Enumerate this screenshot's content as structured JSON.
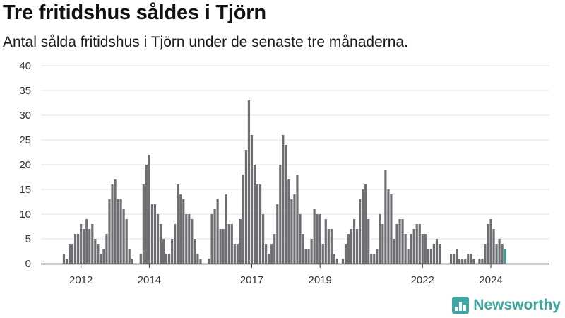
{
  "header": {
    "title": "Tre fritidshus såldes i Tjörn",
    "subtitle": "Antal sålda fritidshus i Tjörn under de senaste tre månaderna."
  },
  "brand": {
    "name": "Newsworthy",
    "icon": "newsworthy-logo-icon",
    "color": "#3ea6a0"
  },
  "chart_data": {
    "type": "bar",
    "x_ticks": [
      {
        "label": "2012",
        "index": 6
      },
      {
        "label": "2014",
        "index": 30
      },
      {
        "label": "2017",
        "index": 66
      },
      {
        "label": "2019",
        "index": 90
      },
      {
        "label": "2022",
        "index": 126
      },
      {
        "label": "2024",
        "index": 150
      }
    ],
    "y_ticks": [
      0,
      5,
      10,
      15,
      20,
      25,
      30,
      35,
      40
    ],
    "ylim": [
      0,
      40
    ],
    "grid": true,
    "colors": {
      "bar": "#6f6e73",
      "highlight": "#3a9e9a",
      "grid": "#e3e3e3",
      "axis": "#333333"
    },
    "annotation": {
      "label": "3",
      "index": 163
    },
    "values": [
      2,
      1,
      4,
      4,
      6,
      6,
      8,
      7,
      9,
      7,
      8,
      5,
      4,
      2,
      3,
      6,
      13,
      16,
      17,
      13,
      13,
      11,
      9,
      3,
      1,
      0,
      0,
      2,
      16,
      20,
      22,
      12,
      12,
      10,
      8,
      5,
      2,
      2,
      5,
      8,
      16,
      14,
      13,
      10,
      10,
      9,
      5,
      2,
      1,
      0,
      0,
      1,
      10,
      11,
      13,
      7,
      7,
      14,
      8,
      8,
      4,
      4,
      9,
      18,
      23,
      33,
      26,
      20,
      16,
      16,
      10,
      4,
      2,
      4,
      6,
      12,
      20,
      26,
      24,
      17,
      13,
      14,
      18,
      10,
      6,
      3,
      3,
      5,
      11,
      10,
      10,
      4,
      9,
      7,
      7,
      2,
      1,
      0,
      1,
      4,
      6,
      7,
      9,
      7,
      13,
      15,
      16,
      9,
      2,
      2,
      3,
      10,
      8,
      19,
      15,
      14,
      5,
      8,
      9,
      9,
      6,
      3,
      6,
      7,
      8,
      8,
      6,
      6,
      3,
      3,
      4,
      5,
      4,
      0,
      0,
      0,
      2,
      2,
      3,
      1,
      1,
      1,
      2,
      2,
      1,
      0,
      1,
      1,
      4,
      8,
      9,
      7,
      4,
      5,
      4,
      3
    ]
  }
}
